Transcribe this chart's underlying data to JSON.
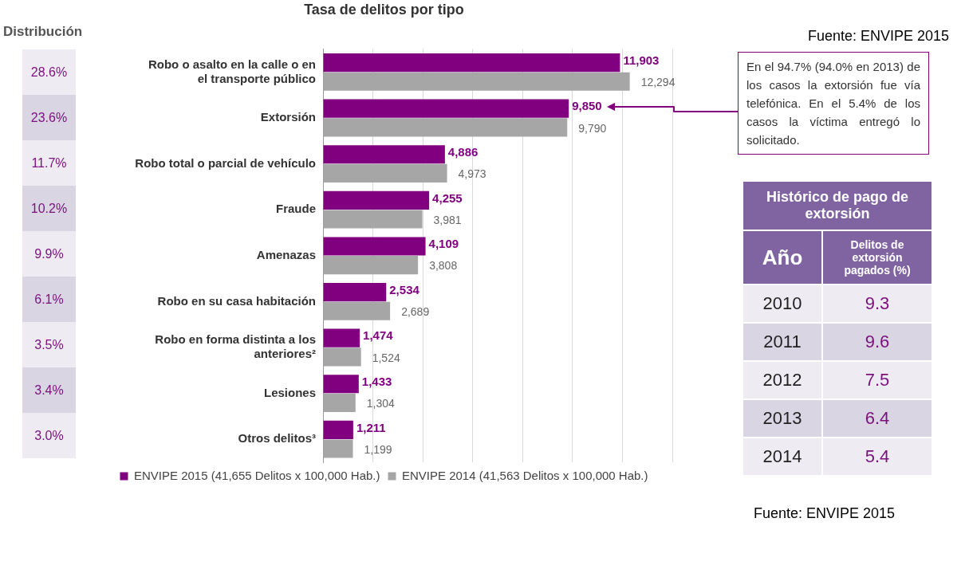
{
  "chart_data": [
    {
      "type": "other",
      "title": "Distribución",
      "annotations": [
        "28.6%",
        "23.6%",
        "11.7%",
        "10.2%",
        "9.9%",
        "6.1%",
        "3.5%",
        "3.4%",
        "3.0%"
      ],
      "color": "#7b0f7e"
    },
    {
      "type": "bar",
      "orientation": "horizontal",
      "title": "Tasa de delitos por tipo",
      "categories": [
        "Robo o asalto en la calle o en el transporte público",
        "Extorsión",
        "Robo total o parcial de vehículo",
        "Fraude",
        "Amenazas",
        "Robo en su casa habitación",
        "Robo en forma distinta a los anteriores²",
        "Lesiones",
        "Otros delitos³"
      ],
      "series": [
        {
          "name": "ENVIPE 2015 (41,655 Delitos x 100,000 Hab.)",
          "color": "#800080",
          "values": [
            11903,
            9850,
            4886,
            4255,
            4109,
            2534,
            1474,
            1433,
            1211
          ],
          "value_labels": [
            "11,903",
            "9,850",
            "4,886",
            "4,255",
            "4,109",
            "2,534",
            "1,474",
            "1,433",
            "1,211"
          ]
        },
        {
          "name": "ENVIPE 2014 (41,563 Delitos x 100,000 Hab.)",
          "color": "#a6a6a6",
          "values": [
            12294,
            9790,
            4973,
            3981,
            3808,
            2689,
            1524,
            1304,
            1199
          ],
          "value_labels": [
            "12,294",
            "9,790",
            "4,973",
            "3,981",
            "3,808",
            "2,689",
            "1,524",
            "1,304",
            "1,199"
          ]
        }
      ],
      "tick_labels": "y",
      "grid": "x",
      "legend": "bottom",
      "annotations": [
        "Fuente: ENVIPE 2015",
        "En el 94.7% (94.0% en 2013) de los casos la extorsión fue vía telefónica. En el 5.4% de los casos la víctima entregó lo solicitado."
      ]
    },
    {
      "type": "heatmap",
      "title": "Histórico de pago de extorsión",
      "ylabel": "Año",
      "categories": [
        "Delitos de extorsión pagados (%)"
      ],
      "y_categories": [
        "2010",
        "2011",
        "2012",
        "2013",
        "2014"
      ],
      "cells": [
        [
          9.3
        ],
        [
          9.6
        ],
        [
          7.5
        ],
        [
          6.4
        ],
        [
          5.4
        ]
      ],
      "data_labels": true,
      "color": "#7b0f7e",
      "annotations": [
        "Fuente: ENVIPE 2015"
      ]
    }
  ]
}
